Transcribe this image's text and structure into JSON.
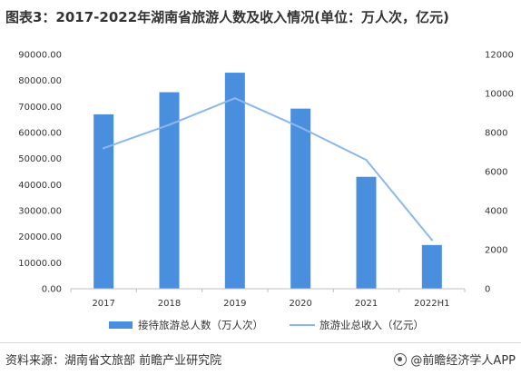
{
  "title": "图表3：2017-2022年湖南省旅游人数及收入情况(单位：万人次，亿元)",
  "footer": {
    "source": "资料来源：湖南省文旅部 前瞻产业研究院",
    "brand": "@前瞻经济学人APP"
  },
  "colors": {
    "bar": "#4a8fde",
    "line": "#8bb8ea",
    "axis_text": "#333333"
  },
  "chart_data": {
    "type": "bar",
    "categories": [
      "2017",
      "2018",
      "2019",
      "2020",
      "2021",
      "2022H1"
    ],
    "series": [
      {
        "name": "接待旅游总人数（万人次）",
        "type": "bar",
        "axis": "left",
        "values": [
          67000,
          75500,
          83000,
          69200,
          43000,
          16800
        ]
      },
      {
        "name": "旅游业总收入（亿元）",
        "type": "line",
        "axis": "right",
        "values": [
          7200,
          8400,
          9760,
          8260,
          6600,
          2500
        ]
      }
    ],
    "y_left": {
      "min": 0,
      "max": 90000,
      "step": 10000,
      "ticks": [
        "0.00",
        "10000.00",
        "20000.00",
        "30000.00",
        "40000.00",
        "50000.00",
        "60000.00",
        "70000.00",
        "80000.00",
        "90000.00"
      ]
    },
    "y_right": {
      "min": 0,
      "max": 12000,
      "step": 2000,
      "ticks": [
        "0",
        "2000",
        "4000",
        "6000",
        "8000",
        "10000",
        "12000"
      ]
    },
    "grid": false,
    "legend_position": "bottom"
  }
}
